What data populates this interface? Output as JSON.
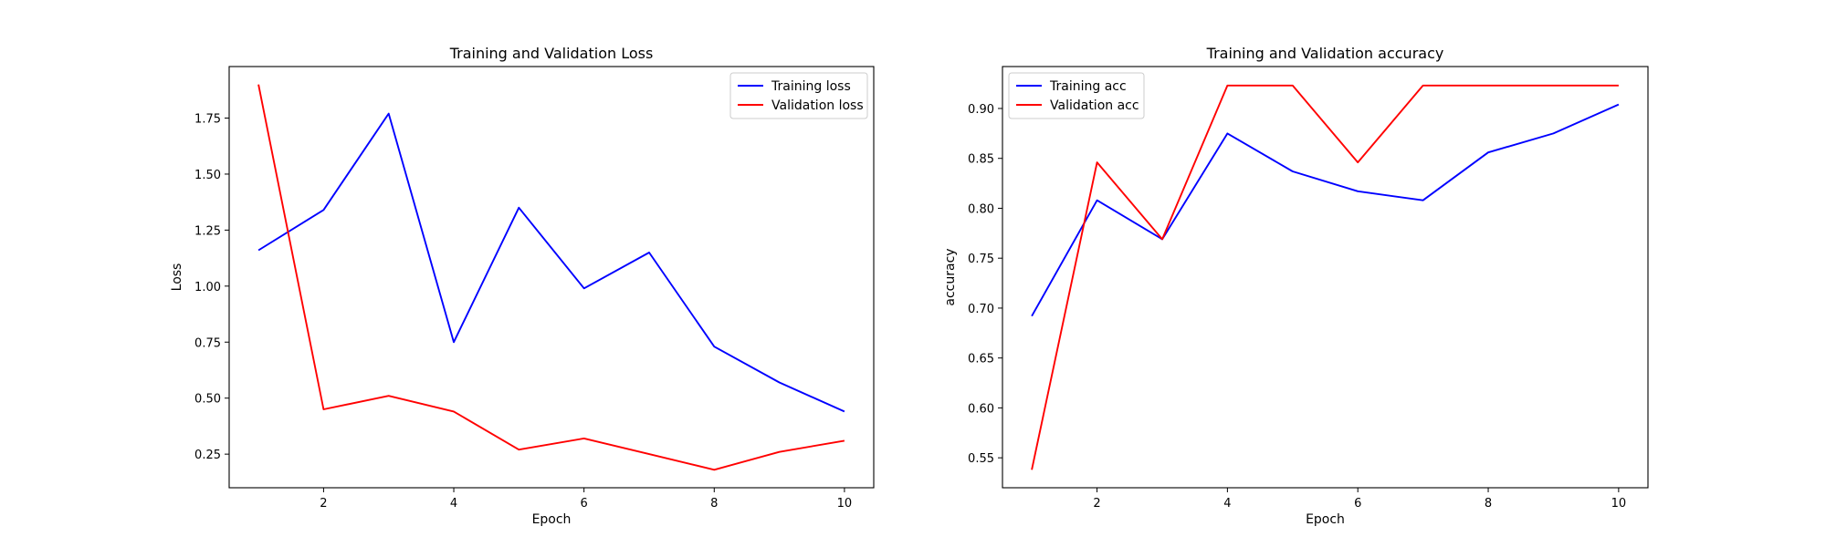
{
  "chart_data": [
    {
      "type": "line",
      "title": "Training and Validation Loss",
      "xlabel": "Epoch",
      "ylabel": "Loss",
      "xlim": [
        0.55,
        10.45
      ],
      "ylim": [
        0.1,
        1.98
      ],
      "xticks": [
        2,
        4,
        6,
        8,
        10
      ],
      "yticks": [
        0.25,
        0.5,
        0.75,
        1.0,
        1.25,
        1.5,
        1.75
      ],
      "yticklabels": [
        "0.25",
        "0.50",
        "0.75",
        "1.00",
        "1.25",
        "1.50",
        "1.75"
      ],
      "legend_position": "top-right",
      "x": [
        1,
        2,
        3,
        4,
        5,
        6,
        7,
        8,
        9,
        10
      ],
      "series": [
        {
          "name": "Training loss",
          "color": "#0000ff",
          "values": [
            1.16,
            1.34,
            1.77,
            0.75,
            1.35,
            0.99,
            1.15,
            0.73,
            0.57,
            0.44
          ]
        },
        {
          "name": "Validation loss",
          "color": "#ff0000",
          "values": [
            1.9,
            0.45,
            0.51,
            0.44,
            0.27,
            0.32,
            0.25,
            0.18,
            0.26,
            0.31
          ]
        }
      ]
    },
    {
      "type": "line",
      "title": "Training and Validation accuracy",
      "xlabel": "Epoch",
      "ylabel": "accuracy",
      "xlim": [
        0.55,
        10.45
      ],
      "ylim": [
        0.52,
        0.942
      ],
      "xticks": [
        2,
        4,
        6,
        8,
        10
      ],
      "yticks": [
        0.55,
        0.6,
        0.65,
        0.7,
        0.75,
        0.8,
        0.85,
        0.9
      ],
      "yticklabels": [
        "0.55",
        "0.60",
        "0.65",
        "0.70",
        "0.75",
        "0.80",
        "0.85",
        "0.90"
      ],
      "legend_position": "top-left",
      "x": [
        1,
        2,
        3,
        4,
        5,
        6,
        7,
        8,
        9,
        10
      ],
      "series": [
        {
          "name": "Training acc",
          "color": "#0000ff",
          "values": [
            0.692,
            0.808,
            0.769,
            0.875,
            0.837,
            0.817,
            0.808,
            0.856,
            0.875,
            0.904
          ]
        },
        {
          "name": "Validation acc",
          "color": "#ff0000",
          "values": [
            0.538,
            0.846,
            0.769,
            0.923,
            0.923,
            0.846,
            0.923,
            0.923,
            0.923,
            0.923
          ]
        }
      ]
    }
  ]
}
